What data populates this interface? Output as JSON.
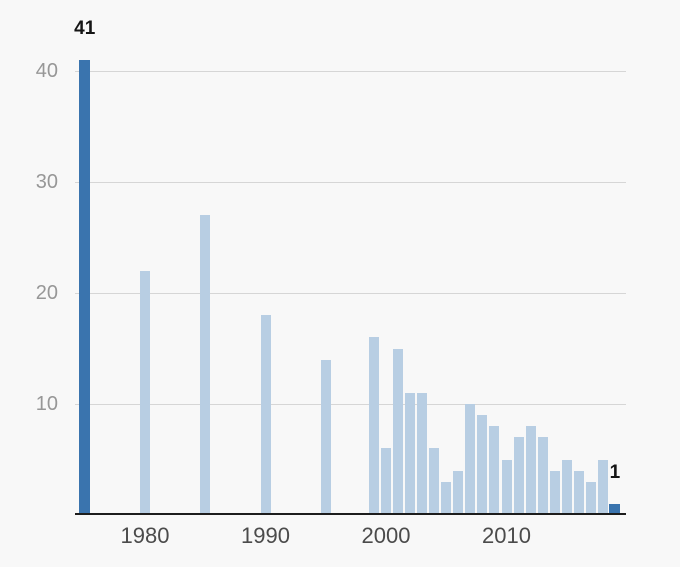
{
  "chart_data": {
    "type": "bar",
    "title": "",
    "xlabel": "",
    "ylabel": "",
    "grid": "horizontal",
    "legend": "none",
    "ylim": [
      0,
      41
    ],
    "x_range": [
      1975,
      2019
    ],
    "points": [
      {
        "year": 1975,
        "value": 41,
        "highlight": true,
        "label": "41"
      },
      {
        "year": 1980,
        "value": 22,
        "highlight": false
      },
      {
        "year": 1985,
        "value": 27,
        "highlight": false
      },
      {
        "year": 1990,
        "value": 18,
        "highlight": false
      },
      {
        "year": 1995,
        "value": 14,
        "highlight": false
      },
      {
        "year": 1999,
        "value": 16,
        "highlight": false
      },
      {
        "year": 2000,
        "value": 6,
        "highlight": false
      },
      {
        "year": 2001,
        "value": 15,
        "highlight": false
      },
      {
        "year": 2002,
        "value": 11,
        "highlight": false
      },
      {
        "year": 2003,
        "value": 11,
        "highlight": false
      },
      {
        "year": 2004,
        "value": 6,
        "highlight": false
      },
      {
        "year": 2005,
        "value": 3,
        "highlight": false
      },
      {
        "year": 2006,
        "value": 4,
        "highlight": false
      },
      {
        "year": 2007,
        "value": 10,
        "highlight": false
      },
      {
        "year": 2008,
        "value": 9,
        "highlight": false
      },
      {
        "year": 2009,
        "value": 8,
        "highlight": false
      },
      {
        "year": 2010,
        "value": 5,
        "highlight": false
      },
      {
        "year": 2011,
        "value": 7,
        "highlight": false
      },
      {
        "year": 2012,
        "value": 8,
        "highlight": false
      },
      {
        "year": 2013,
        "value": 7,
        "highlight": false
      },
      {
        "year": 2014,
        "value": 4,
        "highlight": false
      },
      {
        "year": 2015,
        "value": 5,
        "highlight": false
      },
      {
        "year": 2016,
        "value": 4,
        "highlight": false
      },
      {
        "year": 2017,
        "value": 3,
        "highlight": false
      },
      {
        "year": 2018,
        "value": 5,
        "highlight": false
      },
      {
        "year": 2019,
        "value": 1,
        "highlight": true,
        "label": "1"
      }
    ],
    "yticks": [
      {
        "value": 10,
        "label": "10"
      },
      {
        "value": 20,
        "label": "20"
      },
      {
        "value": 30,
        "label": "30"
      },
      {
        "value": 40,
        "label": "40"
      }
    ],
    "xticks": [
      {
        "value": 1980,
        "label": "1980"
      },
      {
        "value": 1990,
        "label": "1990"
      },
      {
        "value": 2000,
        "label": "2000"
      },
      {
        "value": 2010,
        "label": "2010"
      }
    ],
    "colors": {
      "bar": "#b8cee3",
      "bar_highlight": "#3a74ae",
      "grid": "#d6d6d6",
      "axis": "#1d1d1d",
      "background": "#f8f8f8",
      "ytick_text": "#979797",
      "xtick_text": "#4b4b4b",
      "value_label_text": "#151515"
    }
  }
}
